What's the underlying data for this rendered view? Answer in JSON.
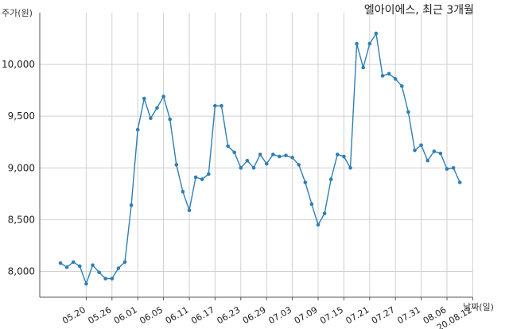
{
  "chart_data": {
    "type": "line",
    "title": "엘아이에스, 최근 3개월",
    "ylabel": "주가(원)",
    "xlabel": "날짜(일)",
    "ylim": [
      7750,
      10500
    ],
    "yticks": [
      8000,
      8500,
      9000,
      9500,
      10000
    ],
    "ytick_labels": [
      "8,000",
      "8,500",
      "9,000",
      "9,500",
      "10,000"
    ],
    "xtick_labels": [
      "05.20",
      "05.26",
      "06.01",
      "06.05",
      "06.11",
      "06.17",
      "06.23",
      "06.29",
      "07.03",
      "07.09",
      "07.15",
      "07.21",
      "07.27",
      "07.31",
      "08.06",
      "20.08.12"
    ],
    "xtick_indices": [
      4,
      8,
      12,
      16,
      20,
      24,
      28,
      32,
      36,
      40,
      44,
      48,
      52,
      56,
      60,
      64
    ],
    "grid": true,
    "color": "#2f7fb5",
    "series": [
      {
        "values": [
          8080,
          8040,
          8090,
          8050,
          7880,
          8060,
          7990,
          7930,
          7930,
          8030,
          8090,
          8640,
          9370,
          9670,
          9480,
          9580,
          9690,
          9470,
          9030,
          8770,
          8590,
          8910,
          8890,
          8940,
          9600,
          9600,
          9210,
          9150,
          9000,
          9070,
          9000,
          9130,
          9040,
          9130,
          9110,
          9120,
          9100,
          9030,
          8860,
          8650,
          8450,
          8560,
          8890,
          9130,
          9110,
          9000,
          10200,
          9970,
          10200,
          10300,
          9890,
          9910,
          9860,
          9790,
          9540,
          9170,
          9220,
          9070,
          9160,
          9140,
          8990,
          9000,
          8860
        ]
      }
    ]
  }
}
